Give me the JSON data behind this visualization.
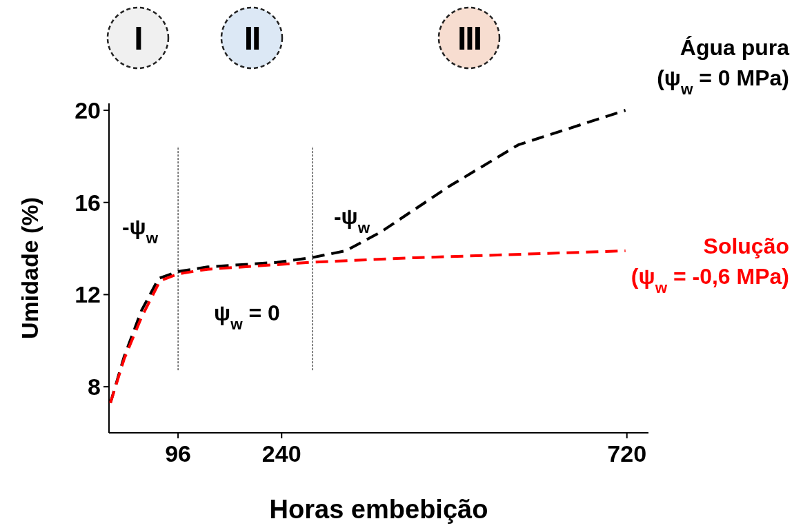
{
  "chart_data": {
    "type": "line",
    "xlabel": "Horas embebição",
    "ylabel": "Umidade (%)",
    "xlim": [
      0,
      750
    ],
    "xticks": [
      96,
      240,
      720
    ],
    "ylim": [
      6,
      20.3
    ],
    "yticks": [
      8,
      12,
      16,
      20
    ],
    "grid": false,
    "line_style": "dashed",
    "series": [
      {
        "name": "Água pura (ψ$_{w}$ = 0 MPa)",
        "color": "#000000",
        "x": [
          2,
          21,
          45,
          69,
          96,
          137,
          233,
          281,
          329,
          377,
          473,
          569,
          718
        ],
        "values": [
          7.3,
          9.3,
          11.3,
          12.7,
          13.0,
          13.2,
          13.4,
          13.6,
          13.9,
          14.7,
          16.7,
          18.5,
          20.0
        ]
      },
      {
        "name": "Solução (ψ$_{w}$ = -0,6 MPa)",
        "color": "#ff0000",
        "x": [
          2,
          21,
          45,
          71,
          96,
          137,
          281,
          425,
          718
        ],
        "values": [
          7.3,
          9.2,
          11.0,
          12.6,
          12.9,
          13.1,
          13.4,
          13.6,
          13.9
        ]
      }
    ],
    "ref_lines": [
      {
        "axis": "x",
        "value": 96,
        "color": "#000000",
        "line_style": "dashed"
      },
      {
        "axis": "x",
        "value": 283,
        "color": "#000000",
        "line_style": "dashed"
      }
    ],
    "annotations": [
      "-ψ$_{w}$",
      "ψ$_{w}$ = 0",
      "-ψ$_{w}$",
      "I",
      "II",
      "III"
    ]
  }
}
